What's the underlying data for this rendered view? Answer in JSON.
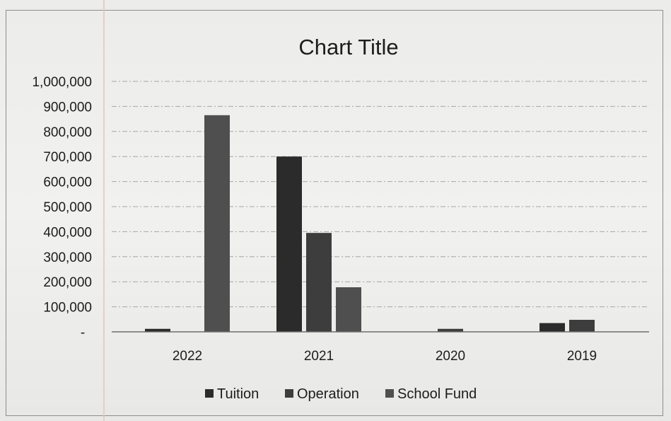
{
  "chart_data": {
    "type": "bar",
    "title": "Chart Title",
    "xlabel": "",
    "ylabel": "",
    "categories": [
      "2022",
      "2021",
      "2020",
      "2019"
    ],
    "series": [
      {
        "name": "Tuition",
        "values": [
          12000,
          700000,
          0,
          35000
        ],
        "color": "#2b2b2b"
      },
      {
        "name": "Operation",
        "values": [
          0,
          395000,
          12000,
          48000
        ],
        "color": "#3d3d3d"
      },
      {
        "name": "School Fund",
        "values": [
          865000,
          178000,
          0,
          0
        ],
        "color": "#4f4f4f"
      }
    ],
    "ylim": [
      0,
      1000000
    ],
    "y_ticks": [
      {
        "value": 0,
        "label": "-"
      },
      {
        "value": 100000,
        "label": "100,000"
      },
      {
        "value": 200000,
        "label": "200,000"
      },
      {
        "value": 300000,
        "label": "300,000"
      },
      {
        "value": 400000,
        "label": "400,000"
      },
      {
        "value": 500000,
        "label": "500,000"
      },
      {
        "value": 600000,
        "label": "600,000"
      },
      {
        "value": 700000,
        "label": "700,000"
      },
      {
        "value": 800000,
        "label": "800,000"
      },
      {
        "value": 900000,
        "label": "900,000"
      },
      {
        "value": 1000000,
        "label": "1,000,000"
      }
    ],
    "grid": true,
    "legend_position": "bottom"
  }
}
